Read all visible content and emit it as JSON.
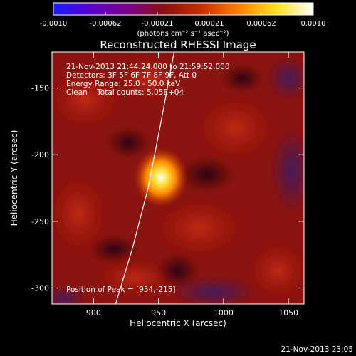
{
  "colorbar": {
    "tick_labels": [
      "-0.0010",
      "-0.00062",
      "-0.00021",
      "0.00021",
      "0.00062",
      "0.0010"
    ],
    "units_label": "(photons cm⁻² s⁻¹ asec⁻²)",
    "colors": [
      "#1a1aff",
      "#5a00c8",
      "#7a0088",
      "#8a1010",
      "#c83000",
      "#ff8000",
      "#ffe020",
      "#ffffff"
    ]
  },
  "chart_data": {
    "type": "heatmap",
    "title": "Reconstructed RHESSI Image",
    "xlabel": "Heliocentric X (arcsec)",
    "ylabel": "Heliocentric Y (arcsec)",
    "xlim": [
      868,
      1062
    ],
    "ylim": [
      -312,
      -123
    ],
    "x_ticks": [
      900,
      950,
      1000,
      1050
    ],
    "y_ticks": [
      -150,
      -200,
      -250,
      -300
    ],
    "info_lines": [
      "21-Nov-2013 21:44:24.000 to 21:59:52.000",
      "Detectors: 3F 5F 6F 7F 8F 9F, Att 0",
      "Energy Range: 25.0 - 50.0 keV",
      "Clean    Total counts: 5.05E+04"
    ],
    "peak_label": "Position of Peak = [954,-215]",
    "peak": [
      954,
      -215
    ],
    "limb_curve": [
      [
        917,
        -312
      ],
      [
        930,
        -270
      ],
      [
        942,
        -225
      ],
      [
        952,
        -175
      ],
      [
        962,
        -123
      ]
    ]
  },
  "footer": {
    "timestamp": "21-Nov-2013 23:05"
  }
}
